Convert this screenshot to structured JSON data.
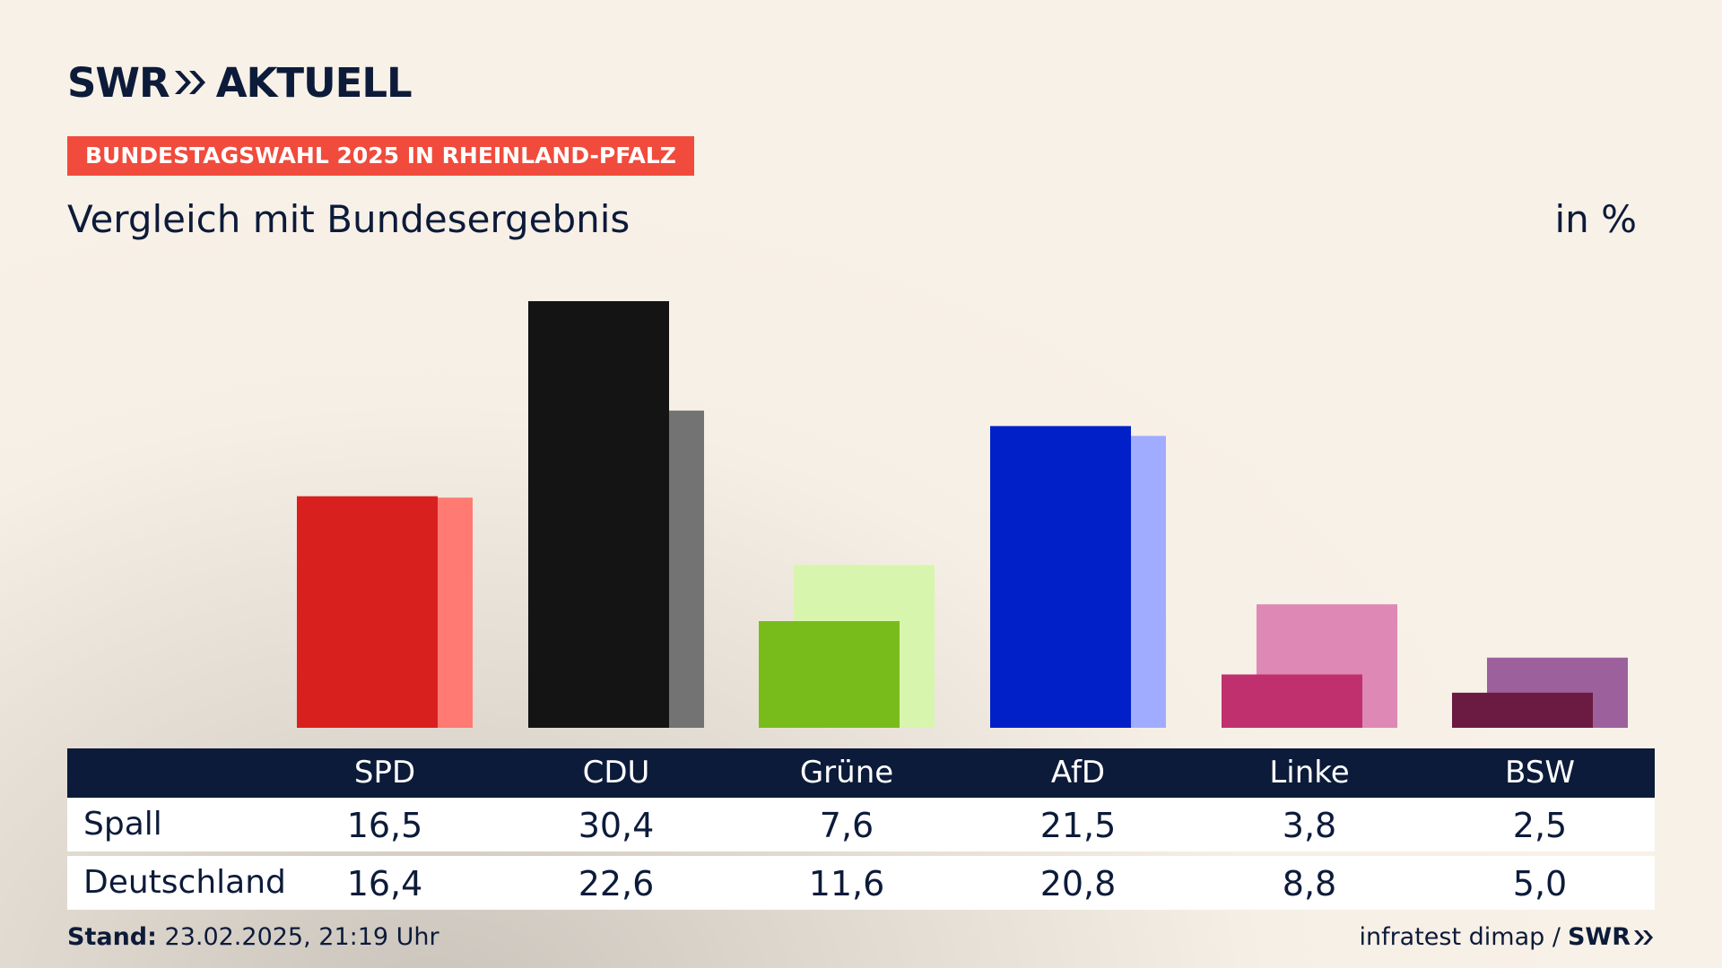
{
  "brand": {
    "name_left": "SWR",
    "name_right": "AKTUELL",
    "chevron_color": "#0d1b3a"
  },
  "kicker": "BUNDESTAGSWAHL 2025 IN RHEINLAND-PFALZ",
  "title": "Vergleich mit Bundesergebnis",
  "unit": "in %",
  "chart_data": {
    "type": "bar",
    "categories": [
      "SPD",
      "CDU",
      "Grüne",
      "AfD",
      "Linke",
      "BSW"
    ],
    "series": [
      {
        "name": "Spall",
        "values": [
          16.5,
          30.4,
          7.6,
          21.5,
          3.8,
          2.5
        ],
        "colors": [
          "#d8201f",
          "#141414",
          "#78bc1b",
          "#0220c8",
          "#c0306e",
          "#6b1a42"
        ]
      },
      {
        "name": "Deutschland",
        "values": [
          16.4,
          22.6,
          11.6,
          20.8,
          8.8,
          5.0
        ],
        "colors": [
          "#ff7a72",
          "#737373",
          "#d8f5ae",
          "#a0acff",
          "#de88b6",
          "#9c619c"
        ]
      }
    ],
    "ylim": [
      0,
      30.4
    ],
    "grid": false
  },
  "table": {
    "headers": [
      "SPD",
      "CDU",
      "Grüne",
      "AfD",
      "Linke",
      "BSW"
    ],
    "rows": [
      {
        "label": "Spall",
        "values": [
          "16,5",
          "30,4",
          "7,6",
          "21,5",
          "3,8",
          "2,5"
        ]
      },
      {
        "label": "Deutschland",
        "values": [
          "16,4",
          "22,6",
          "11,6",
          "20,8",
          "8,8",
          "5,0"
        ]
      }
    ]
  },
  "footer": {
    "stand_label": "Stand:",
    "stand_value": "23.02.2025, 21:19 Uhr",
    "source": "infratest dimap /",
    "source_logo": "SWR"
  }
}
